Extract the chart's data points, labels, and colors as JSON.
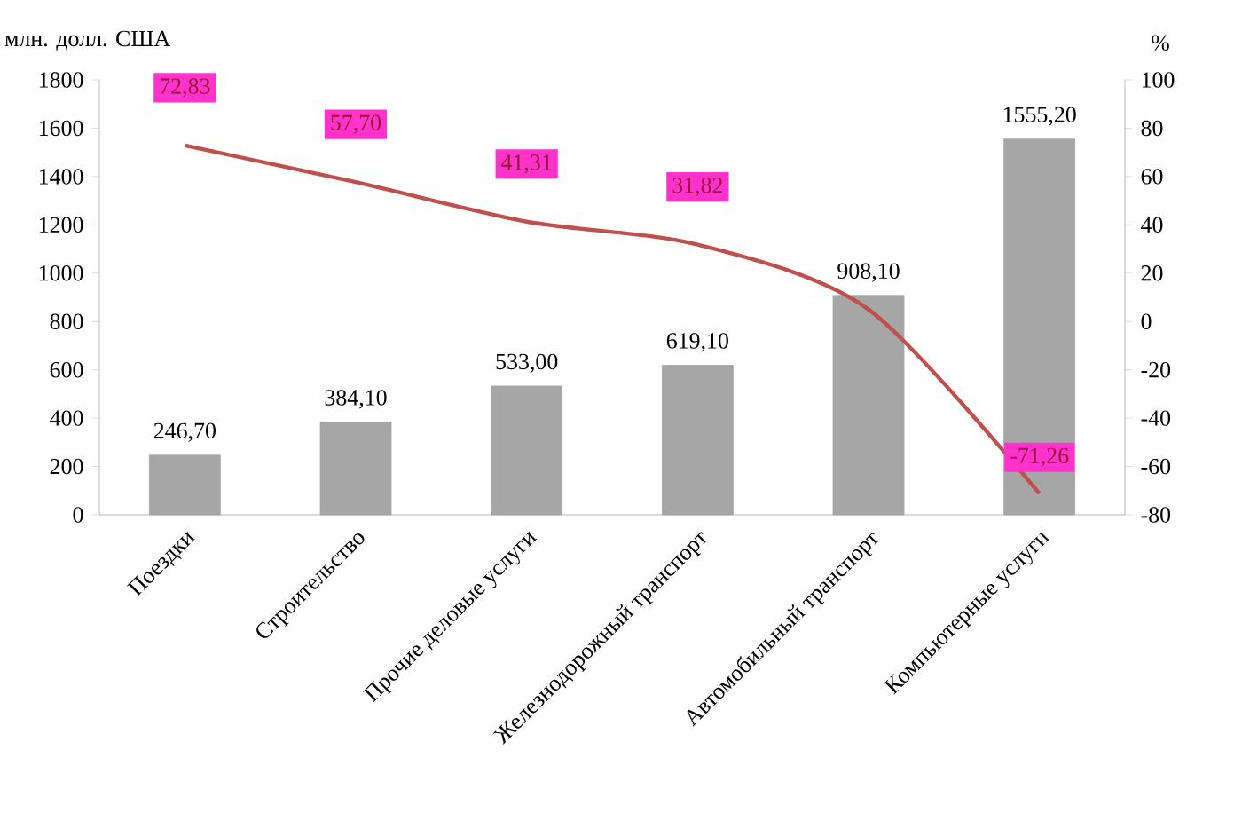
{
  "chart_data": {
    "type": "bar",
    "ylabel": "млн. долл. США",
    "y2label": "%",
    "categories": [
      "Поездки",
      "Строительство",
      "Прочие деловые услуги",
      "Железнодорожный  транспорт",
      "Автомобильный транспорт",
      "Компьютерные услуги"
    ],
    "series": [
      {
        "color": "#a6a6a6",
        "values": [
          246.7,
          384.1,
          533.0,
          619.1,
          908.1,
          1555.2
        ],
        "value_labels": [
          "246,70",
          "384,10",
          "533,00",
          "619,10",
          "908,10",
          "1555,20"
        ]
      },
      {
        "type": "line",
        "axis": "y2",
        "color": "#c0504d",
        "values": [
          72.83,
          57.7,
          41.31,
          31.82,
          5,
          -71.26
        ],
        "value_labels": [
          "72,83",
          "57,70",
          "41,31",
          "31,82",
          null,
          "-71,26"
        ]
      }
    ],
    "ylim": [
      0,
      1800
    ],
    "yticks": [
      0,
      200,
      400,
      600,
      800,
      1000,
      1200,
      1400,
      1600,
      1800
    ],
    "y2lim": [
      -80,
      100
    ],
    "y2ticks": [
      -80,
      -60,
      -40,
      -20,
      0,
      20,
      40,
      60,
      80,
      100
    ],
    "marker": "none",
    "line_style": "solid"
  }
}
